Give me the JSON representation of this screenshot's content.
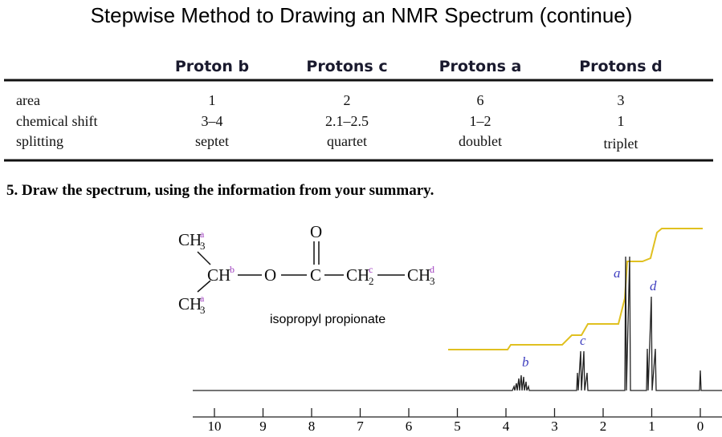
{
  "title": "Stepwise Method to Drawing an NMR Spectrum (continue)",
  "table": {
    "headers": [
      "Proton b",
      "Protons c",
      "Protons a",
      "Protons d"
    ],
    "rows": [
      [
        "area",
        "1",
        "2",
        "6",
        "3"
      ],
      [
        "chemical shift",
        "3–4",
        "2.1–2.5",
        "1–2",
        "1"
      ],
      [
        "splitting",
        "septet",
        "quartet",
        "doublet",
        "triplet"
      ]
    ]
  },
  "step": "5. Draw the spectrum, using the information from your summary.",
  "structure": {
    "top": {
      "atom": "CH",
      "sub": "3",
      "sup": "a"
    },
    "bottom": {
      "atom": "CH",
      "sub": "3",
      "sup": "a"
    },
    "carbonyl": "O",
    "chain": [
      {
        "atom": "CH",
        "sup": "b"
      },
      {
        "atom": "O"
      },
      {
        "atom": "C"
      },
      {
        "atom": "CH",
        "sub": "2",
        "sup": "c"
      },
      {
        "atom": "CH",
        "sub": "3",
        "sup": "d"
      }
    ]
  },
  "compound_name": "isopropyl propionate",
  "spectrum": {
    "peak_labels": {
      "a": "a",
      "b": "b",
      "c": "c",
      "d": "d"
    },
    "ticks": [
      10,
      9,
      8,
      7,
      6,
      5,
      4,
      3,
      2,
      1,
      0
    ]
  }
}
